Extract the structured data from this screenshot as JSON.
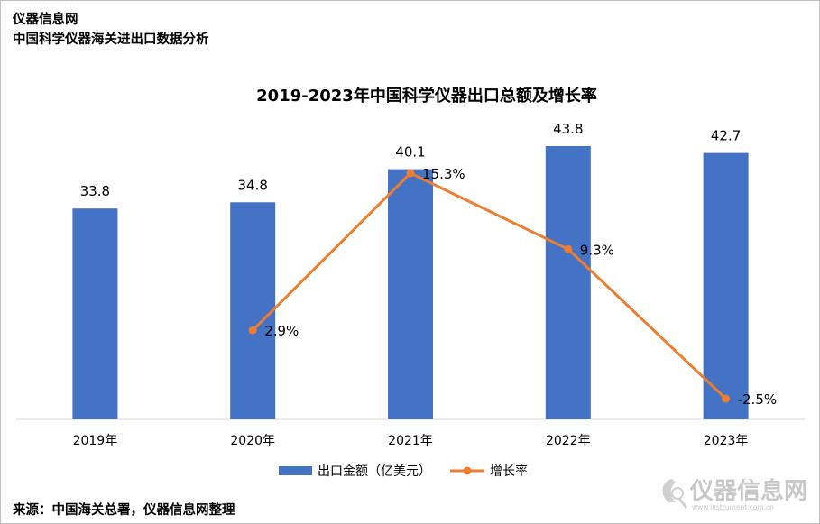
{
  "header": {
    "source_brand": "仪器信息网",
    "subtitle": "中国科学仪器海关进出口数据分析"
  },
  "footer": {
    "source": "来源：中国海关总署，仪器信息网整理"
  },
  "watermark": {
    "text": "仪器信息网",
    "url": "www.instrument.com.cn"
  },
  "colors": {
    "bar": "#4472c4",
    "line": "#ed7d31",
    "axis": "#d9d9d9"
  },
  "chart_data": {
    "type": "bar",
    "title": "2019-2023年中国科学仪器出口总额及增长率",
    "categories": [
      "2019年",
      "2020年",
      "2021年",
      "2022年",
      "2023年"
    ],
    "series": [
      {
        "name": "出口金额（亿美元）",
        "type": "bar",
        "values": [
          33.8,
          34.8,
          40.1,
          43.8,
          42.7
        ],
        "labels": [
          "33.8",
          "34.8",
          "40.1",
          "43.8",
          "42.7"
        ]
      },
      {
        "name": "增长率",
        "type": "line",
        "values": [
          null,
          2.9,
          15.3,
          9.3,
          -2.5
        ],
        "labels": [
          null,
          "2.9%",
          "15.3%",
          "9.3%",
          "-2.5%"
        ]
      }
    ],
    "legend_position": "bottom",
    "grid": false
  }
}
